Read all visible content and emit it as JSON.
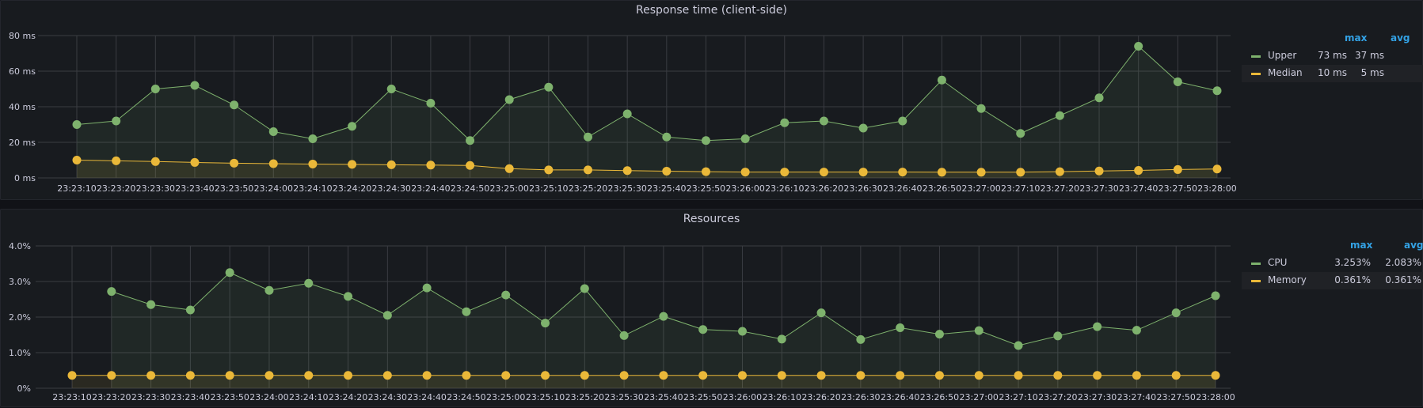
{
  "colors": {
    "green": "#7eb26d",
    "yellow": "#eab839",
    "grid": "#3a3c42",
    "text": "#ccccdc",
    "accent": "#33a2e5"
  },
  "chart_data": [
    {
      "type": "line",
      "title": "Response time (client-side)",
      "ylim": [
        0,
        80
      ],
      "yticks": [
        {
          "v": 0,
          "label": "0 ms"
        },
        {
          "v": 20,
          "label": "20 ms"
        },
        {
          "v": 40,
          "label": "40 ms"
        },
        {
          "v": 60,
          "label": "60 ms"
        },
        {
          "v": 80,
          "label": "80 ms"
        }
      ],
      "x": [
        "23:23:10",
        "23:23:20",
        "23:23:30",
        "23:23:40",
        "23:23:50",
        "23:24:00",
        "23:24:10",
        "23:24:20",
        "23:24:30",
        "23:24:40",
        "23:24:50",
        "23:25:00",
        "23:25:10",
        "23:25:20",
        "23:25:30",
        "23:25:40",
        "23:25:50",
        "23:26:00",
        "23:26:10",
        "23:26:20",
        "23:26:30",
        "23:26:40",
        "23:26:50",
        "23:27:00",
        "23:27:10",
        "23:27:20",
        "23:27:30",
        "23:27:40",
        "23:27:50",
        "23:28:00"
      ],
      "legend_headers": [
        "max",
        "avg"
      ],
      "series": [
        {
          "name": "Upper",
          "color": "#7eb26d",
          "max": "73 ms",
          "avg": "37 ms",
          "values": [
            30,
            32,
            50,
            52,
            41,
            26,
            22,
            29,
            50,
            42,
            21,
            44,
            51,
            23,
            36,
            23,
            21,
            22,
            31,
            32,
            28,
            32,
            55,
            39,
            25,
            35,
            45,
            74,
            54,
            49
          ]
        },
        {
          "name": "Median",
          "color": "#eab839",
          "max": "10 ms",
          "avg": "5 ms",
          "values": [
            10,
            9.6,
            9.2,
            8.7,
            8.3,
            8,
            7.8,
            7.6,
            7.4,
            7.2,
            7,
            5.2,
            4.5,
            4.5,
            4.1,
            3.8,
            3.5,
            3.3,
            3.3,
            3.3,
            3.3,
            3.3,
            3.2,
            3.2,
            3.2,
            3.5,
            3.9,
            4.2,
            4.7,
            5
          ]
        }
      ]
    },
    {
      "type": "line",
      "title": "Resources",
      "ylim": [
        0,
        4
      ],
      "yticks": [
        {
          "v": 0,
          "label": "0%"
        },
        {
          "v": 1,
          "label": "1.0%"
        },
        {
          "v": 2,
          "label": "2.0%"
        },
        {
          "v": 3,
          "label": "3.0%"
        },
        {
          "v": 4,
          "label": "4.0%"
        }
      ],
      "x": [
        "23:23:10",
        "23:23:20",
        "23:23:30",
        "23:23:40",
        "23:23:50",
        "23:24:00",
        "23:24:10",
        "23:24:20",
        "23:24:30",
        "23:24:40",
        "23:24:50",
        "23:25:00",
        "23:25:10",
        "23:25:20",
        "23:25:30",
        "23:25:40",
        "23:25:50",
        "23:26:00",
        "23:26:10",
        "23:26:20",
        "23:26:30",
        "23:26:40",
        "23:26:50",
        "23:27:00",
        "23:27:10",
        "23:27:20",
        "23:27:30",
        "23:27:40",
        "23:27:50",
        "23:28:00"
      ],
      "legend_headers": [
        "max",
        "avg"
      ],
      "series": [
        {
          "name": "CPU",
          "color": "#7eb26d",
          "max": "3.253%",
          "avg": "2.083%",
          "values": [
            null,
            2.72,
            2.35,
            2.2,
            3.25,
            2.75,
            2.95,
            2.58,
            2.05,
            2.82,
            2.15,
            2.62,
            1.83,
            2.8,
            1.48,
            2.02,
            1.65,
            1.6,
            1.38,
            2.12,
            1.37,
            1.7,
            1.52,
            1.62,
            1.2,
            1.47,
            1.73,
            1.63,
            2.12,
            2.6
          ]
        },
        {
          "name": "Memory",
          "color": "#eab839",
          "max": "0.361%",
          "avg": "0.361%",
          "values": [
            0.361,
            0.361,
            0.361,
            0.361,
            0.361,
            0.361,
            0.361,
            0.361,
            0.361,
            0.361,
            0.361,
            0.361,
            0.361,
            0.361,
            0.361,
            0.361,
            0.361,
            0.361,
            0.361,
            0.361,
            0.361,
            0.361,
            0.361,
            0.361,
            0.361,
            0.361,
            0.361,
            0.361,
            0.361,
            0.361
          ]
        }
      ]
    }
  ]
}
